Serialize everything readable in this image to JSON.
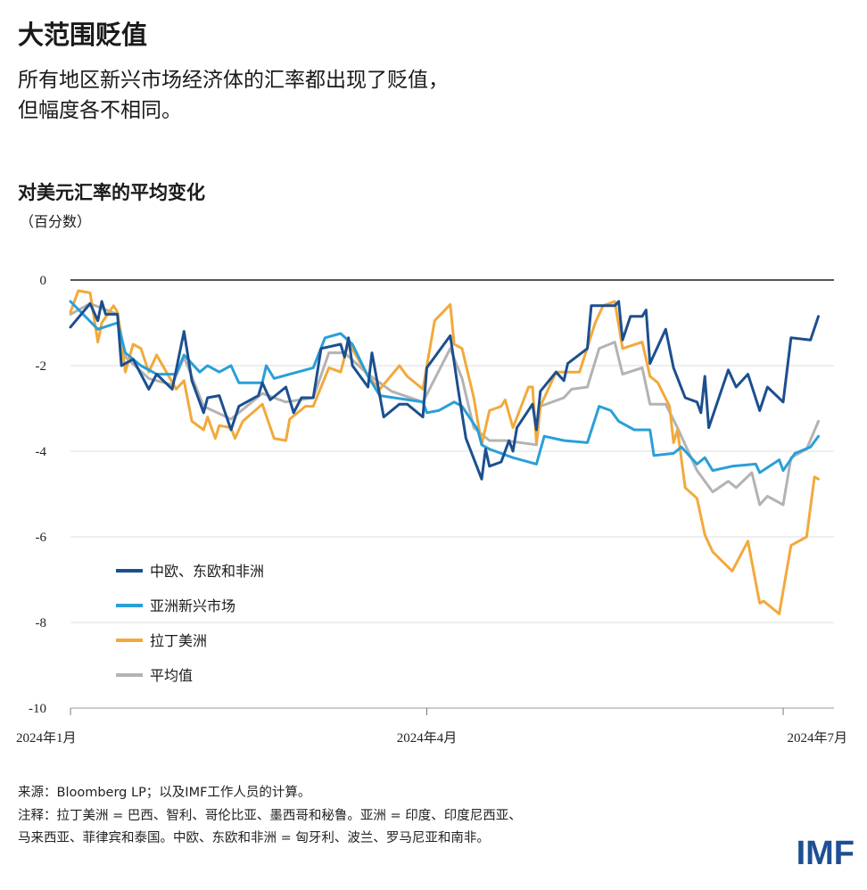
{
  "header": {
    "title": "大范围贬值",
    "subtitle_line1": "所有地区新兴市场经济体的汇率都出现了贬值，",
    "subtitle_line2": "但幅度各不相同。"
  },
  "footer": {
    "source": "来源：Bloomberg LP；以及IMF工作人员的计算。",
    "note_line1": "注释：拉丁美洲 = 巴西、智利、哥伦比亚、墨西哥和秘鲁。亚洲 = 印度、印度尼西亚、",
    "note_line2": "马来西亚、菲律宾和泰国。中欧、东欧和非洲 = 匈牙利、波兰、罗马尼亚和南非。",
    "logo": "IMF",
    "logo_color": "#1f4f93"
  },
  "chart_data": {
    "type": "line",
    "title": "对美元汇率的平均变化",
    "ylabel": "（百分数）",
    "xlabel": "",
    "ylim": [
      -10,
      0
    ],
    "yticks": [
      0,
      -2,
      -4,
      -6,
      -8,
      -10
    ],
    "ytick_labels": [
      "0",
      "-2",
      "-4",
      "-6",
      "-8",
      "-10"
    ],
    "xlim": [
      "2024-01-01",
      "2024-07-10"
    ],
    "xticks": [
      "2024-01-01",
      "2024-04-01",
      "2024-07-01"
    ],
    "xtick_labels": [
      "2024年1月",
      "2024年4月",
      "2024年7月"
    ],
    "grid": "horizontal",
    "legend_position": "bottom-left",
    "series": [
      {
        "name": "中欧、东欧和非洲",
        "color": "#1c4f8f",
        "points": [
          [
            "2024-01-01",
            -1.1
          ],
          [
            "2024-01-06",
            -0.55
          ],
          [
            "2024-01-08",
            -0.95
          ],
          [
            "2024-01-09",
            -0.5
          ],
          [
            "2024-01-10",
            -0.8
          ],
          [
            "2024-01-13",
            -0.8
          ],
          [
            "2024-01-14",
            -2.0
          ],
          [
            "2024-01-17",
            -1.85
          ],
          [
            "2024-01-21",
            -2.55
          ],
          [
            "2024-01-23",
            -2.2
          ],
          [
            "2024-01-27",
            -2.55
          ],
          [
            "2024-01-30",
            -1.2
          ],
          [
            "2024-02-01",
            -2.35
          ],
          [
            "2024-02-04",
            -3.1
          ],
          [
            "2024-02-05",
            -2.75
          ],
          [
            "2024-02-08",
            -2.7
          ],
          [
            "2024-02-11",
            -3.5
          ],
          [
            "2024-02-13",
            -2.95
          ],
          [
            "2024-02-18",
            -2.7
          ],
          [
            "2024-02-19",
            -2.4
          ],
          [
            "2024-02-21",
            -2.8
          ],
          [
            "2024-02-25",
            -2.5
          ],
          [
            "2024-02-27",
            -3.1
          ],
          [
            "2024-02-29",
            -2.75
          ],
          [
            "2024-03-03",
            -2.75
          ],
          [
            "2024-03-05",
            -1.6
          ],
          [
            "2024-03-10",
            -1.5
          ],
          [
            "2024-03-11",
            -1.8
          ],
          [
            "2024-03-12",
            -1.35
          ],
          [
            "2024-03-13",
            -2.0
          ],
          [
            "2024-03-17",
            -2.5
          ],
          [
            "2024-03-18",
            -1.7
          ],
          [
            "2024-03-21",
            -3.2
          ],
          [
            "2024-03-25",
            -2.9
          ],
          [
            "2024-03-27",
            -2.9
          ],
          [
            "2024-03-31",
            -3.2
          ],
          [
            "2024-04-01",
            -2.05
          ],
          [
            "2024-04-07",
            -1.3
          ],
          [
            "2024-04-09",
            -2.55
          ],
          [
            "2024-04-11",
            -3.7
          ],
          [
            "2024-04-15",
            -4.65
          ],
          [
            "2024-04-16",
            -3.95
          ],
          [
            "2024-04-17",
            -4.35
          ],
          [
            "2024-04-20",
            -4.25
          ],
          [
            "2024-04-22",
            -3.75
          ],
          [
            "2024-04-23",
            -4.0
          ],
          [
            "2024-04-24",
            -3.45
          ],
          [
            "2024-04-28",
            -2.9
          ],
          [
            "2024-04-29",
            -3.5
          ],
          [
            "2024-04-30",
            -2.6
          ],
          [
            "2024-05-04",
            -2.15
          ],
          [
            "2024-05-06",
            -2.35
          ],
          [
            "2024-05-07",
            -1.95
          ],
          [
            "2024-05-12",
            -1.6
          ],
          [
            "2024-05-13",
            -0.6
          ],
          [
            "2024-05-19",
            -0.6
          ],
          [
            "2024-05-20",
            -0.5
          ],
          [
            "2024-05-21",
            -1.4
          ],
          [
            "2024-05-23",
            -0.85
          ],
          [
            "2024-05-26",
            -0.85
          ],
          [
            "2024-05-27",
            -0.7
          ],
          [
            "2024-05-28",
            -1.95
          ],
          [
            "2024-06-01",
            -1.15
          ],
          [
            "2024-06-03",
            -2.05
          ],
          [
            "2024-06-06",
            -2.75
          ],
          [
            "2024-06-09",
            -2.85
          ],
          [
            "2024-06-10",
            -3.1
          ],
          [
            "2024-06-11",
            -2.25
          ],
          [
            "2024-06-12",
            -3.45
          ],
          [
            "2024-06-17",
            -2.1
          ],
          [
            "2024-06-19",
            -2.5
          ],
          [
            "2024-06-22",
            -2.2
          ],
          [
            "2024-06-25",
            -3.05
          ],
          [
            "2024-06-27",
            -2.5
          ],
          [
            "2024-07-01",
            -2.85
          ],
          [
            "2024-07-03",
            -1.35
          ],
          [
            "2024-07-08",
            -1.4
          ],
          [
            "2024-07-10",
            -0.85
          ]
        ]
      },
      {
        "name": "亚洲新兴市场",
        "color": "#2a9fd8",
        "points": [
          [
            "2024-01-01",
            -0.5
          ],
          [
            "2024-01-08",
            -1.15
          ],
          [
            "2024-01-13",
            -1.0
          ],
          [
            "2024-01-15",
            -1.7
          ],
          [
            "2024-01-19",
            -2.0
          ],
          [
            "2024-01-23",
            -2.2
          ],
          [
            "2024-01-28",
            -2.2
          ],
          [
            "2024-01-30",
            -1.75
          ],
          [
            "2024-02-03",
            -2.15
          ],
          [
            "2024-02-05",
            -2.0
          ],
          [
            "2024-02-08",
            -2.15
          ],
          [
            "2024-02-11",
            -2.0
          ],
          [
            "2024-02-13",
            -2.4
          ],
          [
            "2024-02-19",
            -2.4
          ],
          [
            "2024-02-20",
            -2.0
          ],
          [
            "2024-02-22",
            -2.3
          ],
          [
            "2024-02-26",
            -2.2
          ],
          [
            "2024-03-03",
            -2.05
          ],
          [
            "2024-03-06",
            -1.35
          ],
          [
            "2024-03-10",
            -1.25
          ],
          [
            "2024-03-13",
            -1.5
          ],
          [
            "2024-03-17",
            -2.25
          ],
          [
            "2024-03-20",
            -2.7
          ],
          [
            "2024-03-31",
            -2.85
          ],
          [
            "2024-04-01",
            -3.1
          ],
          [
            "2024-04-04",
            -3.05
          ],
          [
            "2024-04-08",
            -2.85
          ],
          [
            "2024-04-10",
            -2.95
          ],
          [
            "2024-04-14",
            -3.5
          ],
          [
            "2024-04-15",
            -3.85
          ],
          [
            "2024-04-17",
            -3.95
          ],
          [
            "2024-04-23",
            -4.15
          ],
          [
            "2024-04-29",
            -4.3
          ],
          [
            "2024-05-01",
            -3.65
          ],
          [
            "2024-05-06",
            -3.75
          ],
          [
            "2024-05-12",
            -3.8
          ],
          [
            "2024-05-15",
            -2.95
          ],
          [
            "2024-05-18",
            -3.05
          ],
          [
            "2024-05-20",
            -3.3
          ],
          [
            "2024-05-24",
            -3.5
          ],
          [
            "2024-05-28",
            -3.5
          ],
          [
            "2024-05-29",
            -4.1
          ],
          [
            "2024-06-03",
            -4.05
          ],
          [
            "2024-06-05",
            -3.9
          ],
          [
            "2024-06-09",
            -4.3
          ],
          [
            "2024-06-11",
            -4.15
          ],
          [
            "2024-06-13",
            -4.45
          ],
          [
            "2024-06-18",
            -4.35
          ],
          [
            "2024-06-24",
            -4.3
          ],
          [
            "2024-06-25",
            -4.5
          ],
          [
            "2024-06-30",
            -4.2
          ],
          [
            "2024-07-01",
            -4.45
          ],
          [
            "2024-07-04",
            -4.05
          ],
          [
            "2024-07-08",
            -3.9
          ],
          [
            "2024-07-10",
            -3.65
          ]
        ]
      },
      {
        "name": "拉丁美洲",
        "color": "#f2a93b",
        "points": [
          [
            "2024-01-01",
            -0.75
          ],
          [
            "2024-01-03",
            -0.25
          ],
          [
            "2024-01-06",
            -0.3
          ],
          [
            "2024-01-08",
            -1.45
          ],
          [
            "2024-01-09",
            -1.0
          ],
          [
            "2024-01-12",
            -0.6
          ],
          [
            "2024-01-13",
            -0.75
          ],
          [
            "2024-01-15",
            -2.15
          ],
          [
            "2024-01-17",
            -1.5
          ],
          [
            "2024-01-19",
            -1.6
          ],
          [
            "2024-01-21",
            -2.15
          ],
          [
            "2024-01-23",
            -1.75
          ],
          [
            "2024-01-28",
            -2.55
          ],
          [
            "2024-01-30",
            -2.35
          ],
          [
            "2024-02-01",
            -3.3
          ],
          [
            "2024-02-04",
            -3.5
          ],
          [
            "2024-02-05",
            -3.2
          ],
          [
            "2024-02-07",
            -3.7
          ],
          [
            "2024-02-08",
            -3.4
          ],
          [
            "2024-02-11",
            -3.45
          ],
          [
            "2024-02-12",
            -3.7
          ],
          [
            "2024-02-14",
            -3.3
          ],
          [
            "2024-02-19",
            -2.9
          ],
          [
            "2024-02-22",
            -3.7
          ],
          [
            "2024-02-25",
            -3.75
          ],
          [
            "2024-02-26",
            -3.25
          ],
          [
            "2024-03-01",
            -2.95
          ],
          [
            "2024-03-03",
            -2.95
          ],
          [
            "2024-03-07",
            -2.05
          ],
          [
            "2024-03-10",
            -2.15
          ],
          [
            "2024-03-12",
            -1.45
          ],
          [
            "2024-03-17",
            -2.25
          ],
          [
            "2024-03-20",
            -2.55
          ],
          [
            "2024-03-25",
            -2.0
          ],
          [
            "2024-03-27",
            -2.25
          ],
          [
            "2024-03-31",
            -2.55
          ],
          [
            "2024-04-03",
            -0.95
          ],
          [
            "2024-04-07",
            -0.57
          ],
          [
            "2024-04-08",
            -1.5
          ],
          [
            "2024-04-10",
            -1.6
          ],
          [
            "2024-04-13",
            -2.75
          ],
          [
            "2024-04-15",
            -3.85
          ],
          [
            "2024-04-17",
            -3.05
          ],
          [
            "2024-04-20",
            -2.95
          ],
          [
            "2024-04-21",
            -2.8
          ],
          [
            "2024-04-23",
            -3.45
          ],
          [
            "2024-04-27",
            -2.5
          ],
          [
            "2024-04-28",
            -2.5
          ],
          [
            "2024-04-29",
            -3.8
          ],
          [
            "2024-04-30",
            -2.95
          ],
          [
            "2024-05-04",
            -2.15
          ],
          [
            "2024-05-10",
            -2.15
          ],
          [
            "2024-05-14",
            -1.0
          ],
          [
            "2024-05-16",
            -0.6
          ],
          [
            "2024-05-19",
            -0.5
          ],
          [
            "2024-05-21",
            -1.6
          ],
          [
            "2024-05-26",
            -1.45
          ],
          [
            "2024-05-28",
            -2.25
          ],
          [
            "2024-05-30",
            -2.4
          ],
          [
            "2024-06-02",
            -2.95
          ],
          [
            "2024-06-03",
            -3.8
          ],
          [
            "2024-06-04",
            -3.5
          ],
          [
            "2024-06-06",
            -4.85
          ],
          [
            "2024-06-09",
            -5.1
          ],
          [
            "2024-06-11",
            -5.95
          ],
          [
            "2024-06-13",
            -6.35
          ],
          [
            "2024-06-18",
            -6.8
          ],
          [
            "2024-06-22",
            -6.1
          ],
          [
            "2024-06-25",
            -7.55
          ],
          [
            "2024-06-26",
            -7.5
          ],
          [
            "2024-06-30",
            -7.8
          ],
          [
            "2024-07-03",
            -6.2
          ],
          [
            "2024-07-07",
            -6.0
          ],
          [
            "2024-07-09",
            -4.6
          ],
          [
            "2024-07-10",
            -4.65
          ]
        ]
      },
      {
        "name": "平均值",
        "color": "#b3b3b3",
        "points": [
          [
            "2024-01-01",
            -0.8
          ],
          [
            "2024-01-06",
            -0.55
          ],
          [
            "2024-01-13",
            -0.8
          ],
          [
            "2024-01-15",
            -1.8
          ],
          [
            "2024-01-21",
            -2.3
          ],
          [
            "2024-01-27",
            -2.45
          ],
          [
            "2024-01-30",
            -1.8
          ],
          [
            "2024-02-04",
            -2.95
          ],
          [
            "2024-02-11",
            -3.25
          ],
          [
            "2024-02-19",
            -2.65
          ],
          [
            "2024-02-25",
            -2.85
          ],
          [
            "2024-03-03",
            -2.75
          ],
          [
            "2024-03-07",
            -1.7
          ],
          [
            "2024-03-11",
            -1.7
          ],
          [
            "2024-03-17",
            -2.2
          ],
          [
            "2024-03-23",
            -2.6
          ],
          [
            "2024-03-31",
            -2.85
          ],
          [
            "2024-04-07",
            -1.6
          ],
          [
            "2024-04-10",
            -2.3
          ],
          [
            "2024-04-13",
            -3.45
          ],
          [
            "2024-04-17",
            -3.75
          ],
          [
            "2024-04-21",
            -3.75
          ],
          [
            "2024-04-29",
            -3.85
          ],
          [
            "2024-04-30",
            -2.95
          ],
          [
            "2024-05-06",
            -2.75
          ],
          [
            "2024-05-08",
            -2.55
          ],
          [
            "2024-05-12",
            -2.5
          ],
          [
            "2024-05-15",
            -1.6
          ],
          [
            "2024-05-19",
            -1.45
          ],
          [
            "2024-05-21",
            -2.2
          ],
          [
            "2024-05-26",
            -2.05
          ],
          [
            "2024-05-28",
            -2.9
          ],
          [
            "2024-06-01",
            -2.9
          ],
          [
            "2024-06-04",
            -3.45
          ],
          [
            "2024-06-06",
            -3.85
          ],
          [
            "2024-06-09",
            -4.45
          ],
          [
            "2024-06-13",
            -4.95
          ],
          [
            "2024-06-17",
            -4.7
          ],
          [
            "2024-06-19",
            -4.85
          ],
          [
            "2024-06-23",
            -4.5
          ],
          [
            "2024-06-25",
            -5.25
          ],
          [
            "2024-06-27",
            -5.05
          ],
          [
            "2024-07-01",
            -5.25
          ],
          [
            "2024-07-03",
            -4.15
          ],
          [
            "2024-07-07",
            -3.95
          ],
          [
            "2024-07-10",
            -3.3
          ]
        ]
      }
    ]
  }
}
